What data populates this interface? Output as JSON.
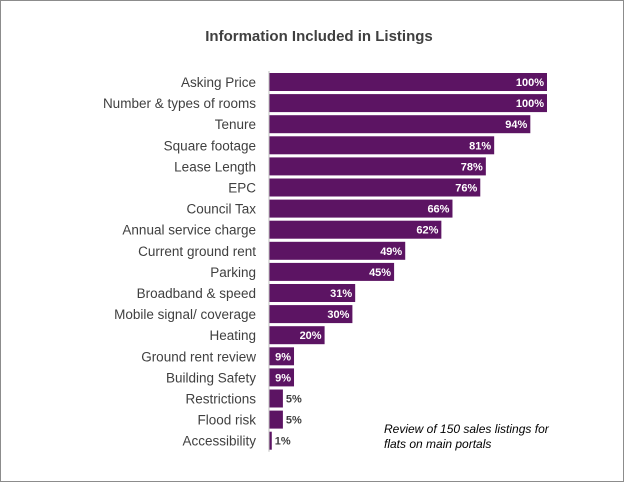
{
  "chart_data": {
    "type": "bar",
    "orientation": "horizontal",
    "title": "Information Included in Listings",
    "categories": [
      "Asking Price",
      "Number & types of rooms",
      "Tenure",
      "Square footage",
      "Lease Length",
      "EPC",
      "Council Tax",
      "Annual service charge",
      "Current ground rent",
      "Parking",
      "Broadband & speed",
      "Mobile signal/ coverage",
      "Heating",
      "Ground rent review",
      "Building Safety",
      "Restrictions",
      "Flood risk",
      "Accessibility"
    ],
    "values": [
      100,
      100,
      94,
      81,
      78,
      76,
      66,
      62,
      49,
      45,
      31,
      30,
      20,
      9,
      9,
      5,
      5,
      1
    ],
    "value_labels": [
      "100%",
      "100%",
      "94%",
      "81%",
      "78%",
      "76%",
      "66%",
      "62%",
      "49%",
      "45%",
      "31%",
      "30%",
      "20%",
      "9%",
      "9%",
      "5%",
      "5%",
      "1%"
    ],
    "xlim": [
      0,
      100
    ],
    "grid": false,
    "bar_color": "#5c1463",
    "annotation": {
      "line1": "Review of 150 sales listings for",
      "line2": "flats on main portals"
    }
  }
}
